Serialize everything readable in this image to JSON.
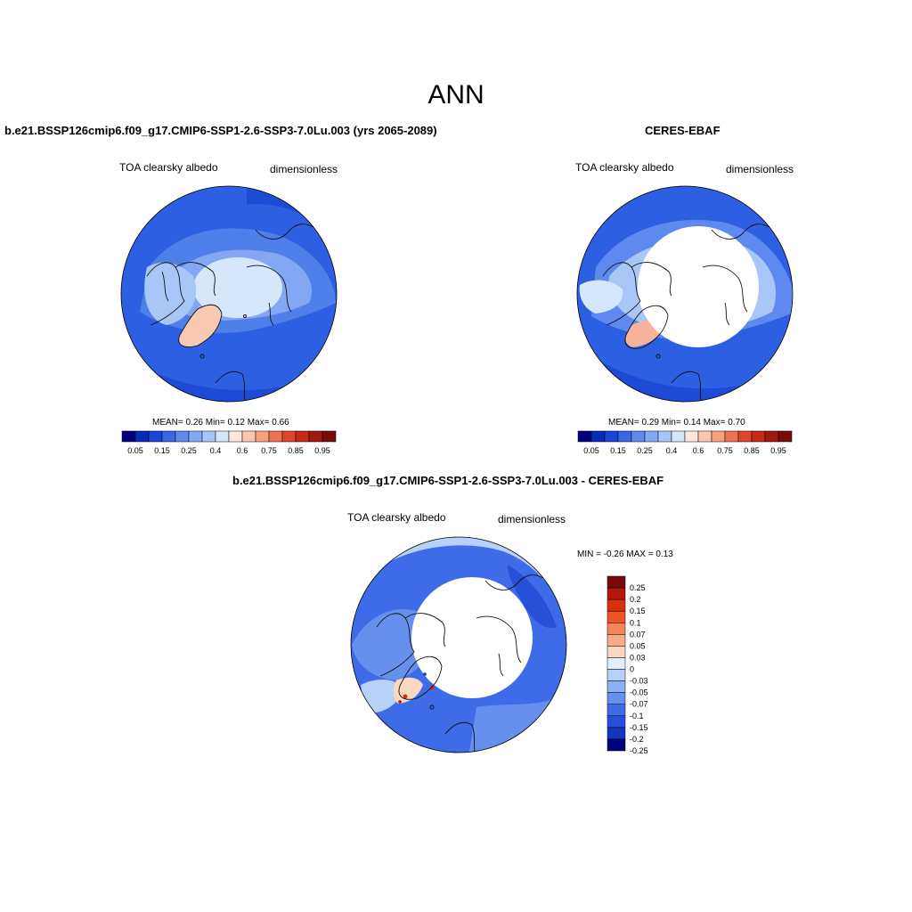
{
  "figure": {
    "title": "ANN"
  },
  "colors": {
    "ocean_mid": "#4f7fe8",
    "land_dark": "#2450d8",
    "ice_light": "#d4e7fb",
    "ice_medium": "#a9c7f6",
    "greenland_model": "#f8c9b2",
    "greenland_obs": "#f6b39a",
    "coast": "#111111"
  },
  "panels": [
    {
      "id": "model",
      "title": "b.e21.BSSP126cmip6.f09_g17.CMIP6-SSP1-2.6-SSP3-7.0Lu.003 (yrs 2065-2089)",
      "variable": "TOA clearsky albedo",
      "units": "dimensionless",
      "stats": "MEAN=   0.26  Min=   0.12  Max=   0.66"
    },
    {
      "id": "obs",
      "title": "CERES-EBAF",
      "variable": "TOA clearsky albedo",
      "units": "dimensionless",
      "stats": "MEAN=   0.29  Min=   0.14  Max=   0.70"
    },
    {
      "id": "diff",
      "title": "b.e21.BSSP126cmip6.f09_g17.CMIP6-SSP1-2.6-SSP3-7.0Lu.003 - CERES-EBAF",
      "variable": "TOA clearsky albedo",
      "units": "dimensionless",
      "stats": "MIN =  -0.26 MAX =   0.13"
    }
  ],
  "colorbar_abs": {
    "colors": [
      "#00007f",
      "#0a2bb4",
      "#1a44d4",
      "#3a66e6",
      "#5e8af0",
      "#84a7f4",
      "#aac6f8",
      "#d2e6fc",
      "#fde8da",
      "#fbc7ae",
      "#f6a27f",
      "#ef7352",
      "#e2452a",
      "#c52a16",
      "#9d1a0f",
      "#7a0a0a"
    ],
    "tick_labels": [
      "0.05",
      "0.15",
      "0.25",
      "0.4",
      "0.6",
      "0.75",
      "0.85",
      "0.95"
    ]
  },
  "colorbar_diff": {
    "colors": [
      "#7a0a0a",
      "#b0170d",
      "#d8300f",
      "#ef5428",
      "#f6845a",
      "#f8ac86",
      "#fbd8c1",
      "#e4effd",
      "#b7d1f9",
      "#8cb0f4",
      "#6690ee",
      "#3e6be7",
      "#2650d8",
      "#1335bf",
      "#00007f"
    ],
    "tick_labels": [
      "0.25",
      "0.2",
      "0.15",
      "0.1",
      "0.07",
      "0.05",
      "0.03",
      "0",
      "-0.03",
      "-0.05",
      "-0.07",
      "-0.1",
      "-0.15",
      "-0.2",
      "-0.25"
    ]
  }
}
